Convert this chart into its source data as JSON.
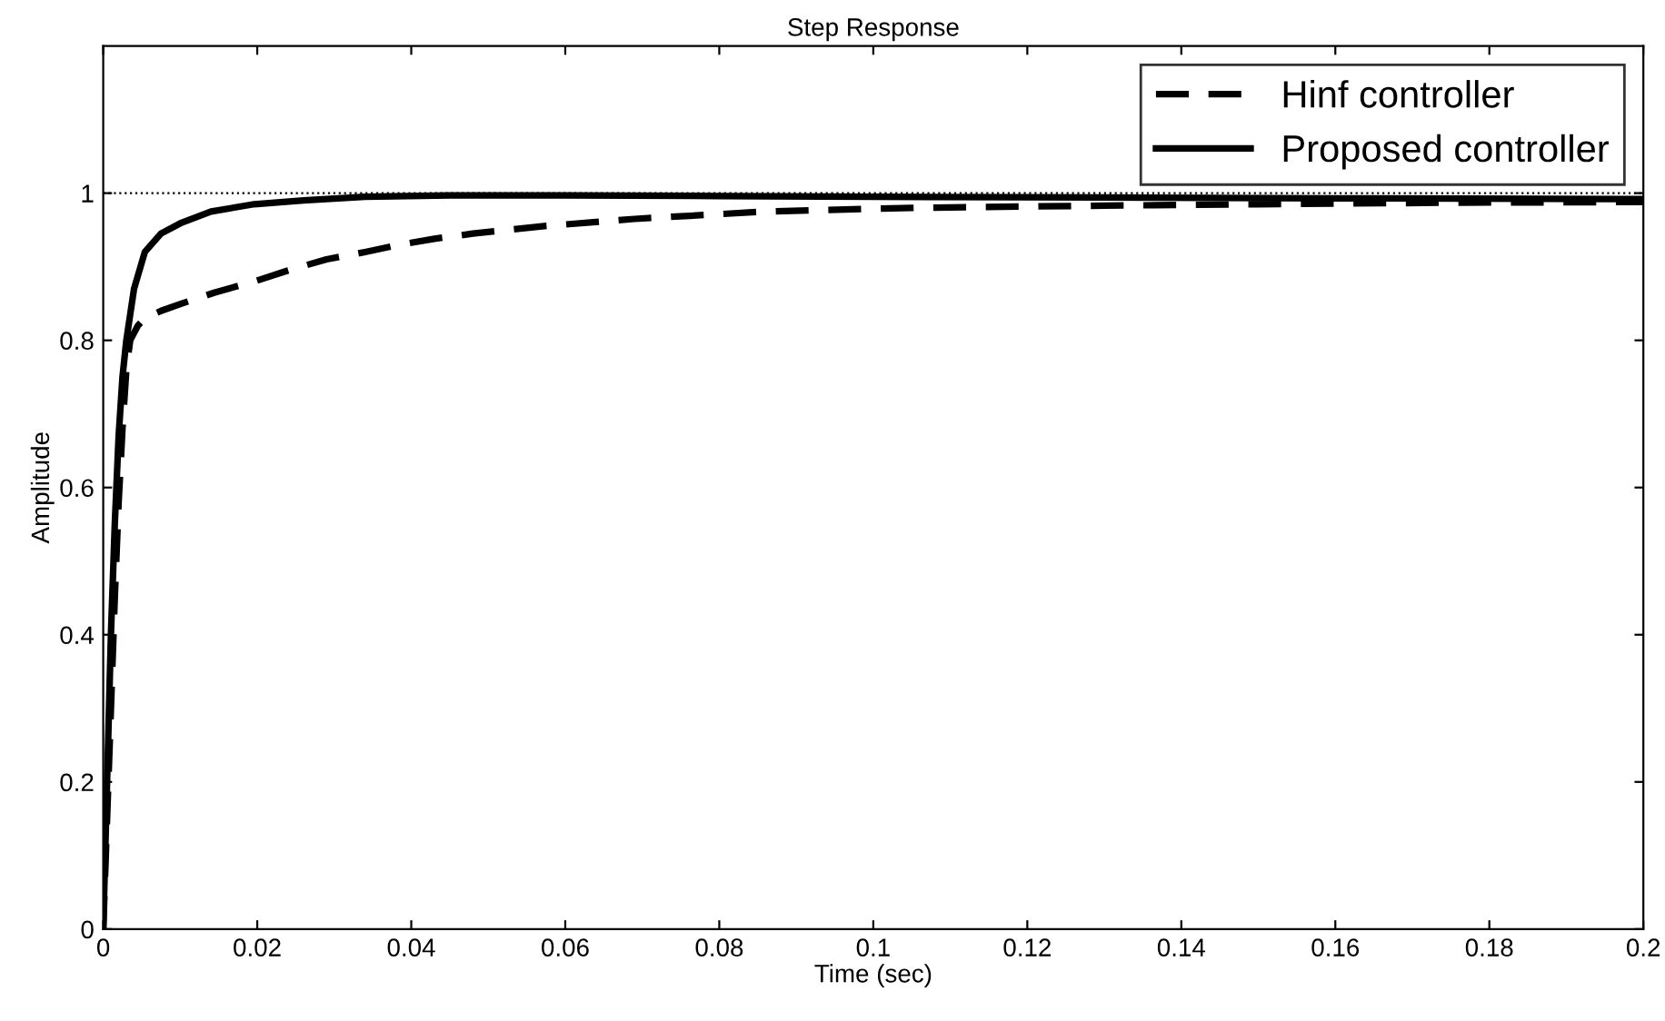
{
  "chart_data": {
    "type": "line",
    "title": "Step Response",
    "xlabel": "Time (sec)",
    "ylabel": "Amplitude",
    "xlim": [
      0,
      0.2
    ],
    "xticks": [
      0,
      0.02,
      0.04,
      0.06,
      0.08,
      0.1,
      0.12,
      0.14,
      0.16,
      0.18,
      0.2
    ],
    "ylim": [
      0,
      1.2
    ],
    "yticks": [
      0,
      0.2,
      0.4,
      0.6,
      0.8,
      1
    ],
    "grid": false,
    "legend": "top right",
    "ref_lines": [
      {
        "axis": "y",
        "value": 1,
        "color": "#000000",
        "line_style": "dotted"
      }
    ],
    "series": [
      {
        "name": "Hinf controller",
        "color": "#000000",
        "line_style": "dashed",
        "x": [
          0,
          0.0005,
          0.001,
          0.0015,
          0.002,
          0.0025,
          0.003,
          0.0035,
          0.0045,
          0.0054,
          0.0075,
          0.0102,
          0.0145,
          0.0196,
          0.024,
          0.029,
          0.034,
          0.0385,
          0.043,
          0.048,
          0.057,
          0.069,
          0.086,
          0.105,
          0.13,
          0.15,
          0.175,
          0.2
        ],
        "values": [
          0,
          0.15,
          0.3,
          0.45,
          0.58,
          0.68,
          0.76,
          0.8,
          0.82,
          0.83,
          0.84,
          0.85,
          0.865,
          0.88,
          0.895,
          0.91,
          0.92,
          0.93,
          0.938,
          0.945,
          0.955,
          0.965,
          0.975,
          0.98,
          0.983,
          0.985,
          0.987,
          0.988
        ]
      },
      {
        "name": "Proposed controller",
        "color": "#000000",
        "line_style": "solid",
        "x": [
          0,
          0.0005,
          0.001,
          0.0015,
          0.002,
          0.0025,
          0.003,
          0.004,
          0.0054,
          0.0075,
          0.0102,
          0.014,
          0.0196,
          0.026,
          0.034,
          0.045,
          0.06,
          0.08,
          0.1,
          0.13,
          0.16,
          0.2
        ],
        "values": [
          0,
          0.2,
          0.4,
          0.55,
          0.67,
          0.75,
          0.8,
          0.87,
          0.92,
          0.945,
          0.96,
          0.975,
          0.985,
          0.99,
          0.995,
          0.997,
          0.997,
          0.996,
          0.995,
          0.994,
          0.993,
          0.992
        ]
      }
    ]
  }
}
